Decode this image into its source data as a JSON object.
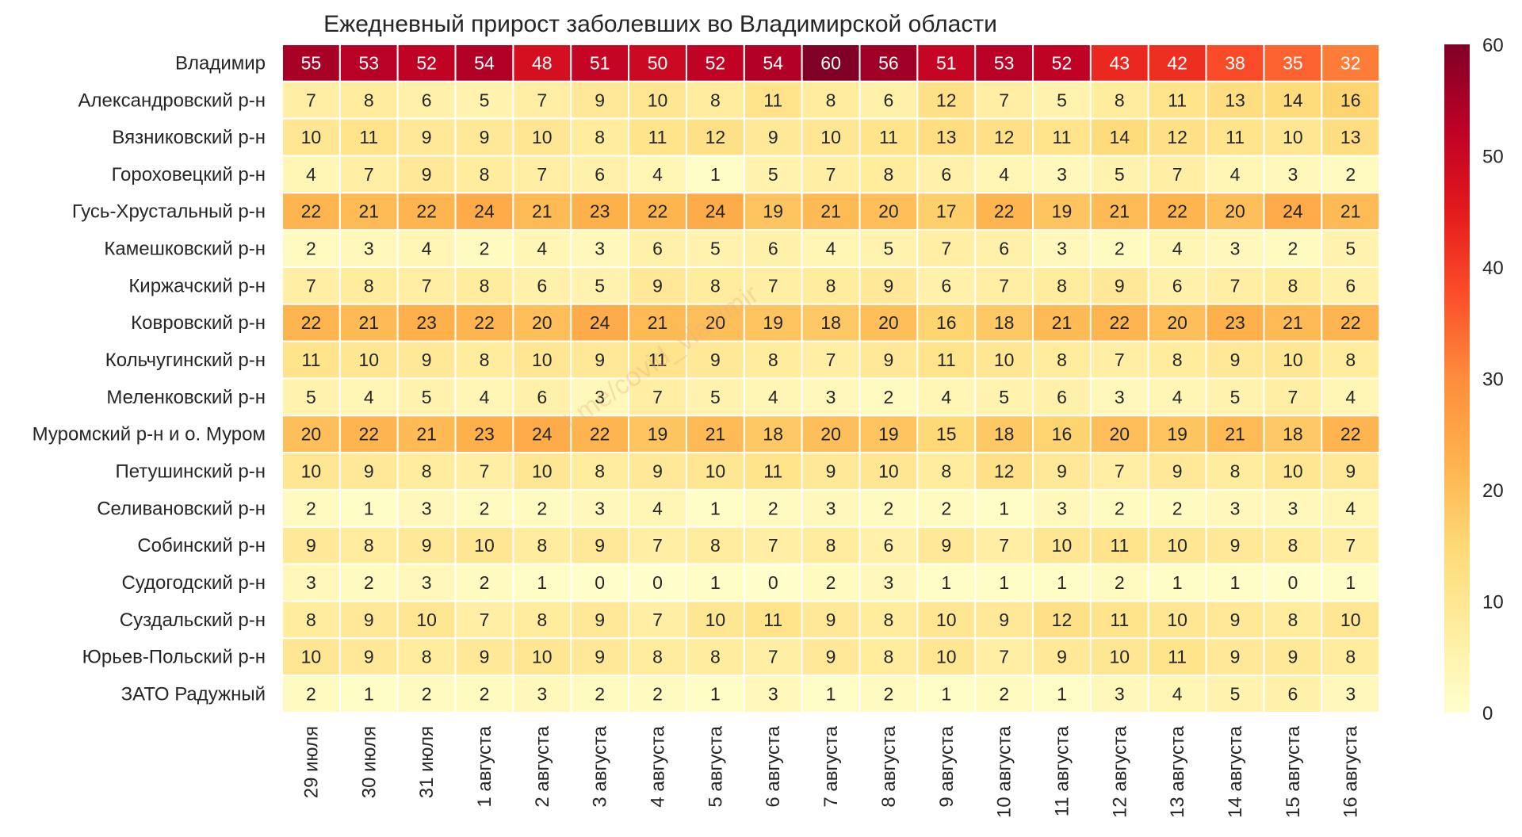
{
  "chart_data": {
    "type": "heatmap",
    "title": "Ежедневный прирост заболевших во Владимирской области",
    "watermark": "t.me/covid_vladimir",
    "columns": [
      "29 июля",
      "30 июля",
      "31 июля",
      "1 августа",
      "2 августа",
      "3 августа",
      "4 августа",
      "5 августа",
      "6 августа",
      "7 августа",
      "8 августа",
      "9 августа",
      "10 августа",
      "11 августа",
      "12 августа",
      "13 августа",
      "14 августа",
      "15 августа",
      "16 августа"
    ],
    "rows": [
      "Владимир",
      "Александровский р-н",
      "Вязниковский р-н",
      "Гороховецкий р-н",
      "Гусь-Хрустальный р-н",
      "Камешковский р-н",
      "Киржачский р-н",
      "Ковровский р-н",
      "Кольчугинский р-н",
      "Меленковский р-н",
      "Муромский р-н и о. Муром",
      "Петушинский р-н",
      "Селивановский р-н",
      "Собинский р-н",
      "Судогодский р-н",
      "Суздальский р-н",
      "Юрьев-Польский р-н",
      "ЗАТО Радужный"
    ],
    "values": [
      [
        55,
        53,
        52,
        54,
        48,
        51,
        50,
        52,
        54,
        60,
        56,
        51,
        53,
        52,
        43,
        42,
        38,
        35,
        32
      ],
      [
        7,
        8,
        6,
        5,
        7,
        9,
        10,
        8,
        11,
        8,
        6,
        12,
        7,
        5,
        8,
        11,
        13,
        14,
        16
      ],
      [
        10,
        11,
        9,
        9,
        10,
        8,
        11,
        12,
        9,
        10,
        11,
        13,
        12,
        11,
        14,
        12,
        11,
        10,
        13
      ],
      [
        4,
        7,
        9,
        8,
        7,
        6,
        4,
        1,
        5,
        7,
        8,
        6,
        4,
        3,
        5,
        7,
        4,
        3,
        2
      ],
      [
        22,
        21,
        22,
        24,
        21,
        23,
        22,
        24,
        19,
        21,
        20,
        17,
        22,
        19,
        21,
        22,
        20,
        24,
        21
      ],
      [
        2,
        3,
        4,
        2,
        4,
        3,
        6,
        5,
        6,
        4,
        5,
        7,
        6,
        3,
        2,
        4,
        3,
        2,
        5
      ],
      [
        7,
        8,
        7,
        8,
        6,
        5,
        9,
        8,
        7,
        8,
        9,
        6,
        7,
        8,
        9,
        6,
        7,
        8,
        6
      ],
      [
        22,
        21,
        23,
        22,
        20,
        24,
        21,
        20,
        19,
        18,
        20,
        16,
        18,
        21,
        22,
        20,
        23,
        21,
        22
      ],
      [
        11,
        10,
        9,
        8,
        10,
        9,
        11,
        9,
        8,
        7,
        9,
        11,
        10,
        8,
        7,
        8,
        9,
        10,
        8
      ],
      [
        5,
        4,
        5,
        4,
        6,
        3,
        7,
        5,
        4,
        3,
        2,
        4,
        5,
        6,
        3,
        4,
        5,
        7,
        4
      ],
      [
        20,
        22,
        21,
        23,
        24,
        22,
        19,
        21,
        18,
        20,
        19,
        15,
        18,
        16,
        20,
        19,
        21,
        18,
        22
      ],
      [
        10,
        9,
        8,
        7,
        10,
        8,
        9,
        10,
        11,
        9,
        10,
        8,
        12,
        9,
        7,
        9,
        8,
        10,
        9
      ],
      [
        2,
        1,
        3,
        2,
        2,
        3,
        4,
        1,
        2,
        3,
        2,
        2,
        1,
        3,
        2,
        2,
        3,
        3,
        4
      ],
      [
        9,
        8,
        9,
        10,
        8,
        9,
        7,
        8,
        7,
        8,
        6,
        9,
        7,
        10,
        11,
        10,
        9,
        8,
        7
      ],
      [
        3,
        2,
        3,
        2,
        1,
        0,
        0,
        1,
        0,
        2,
        3,
        1,
        1,
        1,
        2,
        1,
        1,
        0,
        1
      ],
      [
        8,
        9,
        10,
        7,
        8,
        9,
        7,
        10,
        11,
        9,
        8,
        10,
        9,
        12,
        11,
        10,
        9,
        8,
        10
      ],
      [
        10,
        9,
        8,
        9,
        10,
        9,
        8,
        8,
        7,
        9,
        8,
        10,
        7,
        9,
        10,
        11,
        9,
        9,
        8
      ],
      [
        2,
        1,
        2,
        2,
        3,
        2,
        2,
        1,
        3,
        1,
        2,
        1,
        2,
        1,
        3,
        4,
        5,
        6,
        3
      ]
    ],
    "vmin": 0,
    "vmax": 60,
    "colormap": "YlOrRd",
    "colorbar_ticks": [
      0,
      10,
      20,
      30,
      40,
      50,
      60
    ]
  }
}
